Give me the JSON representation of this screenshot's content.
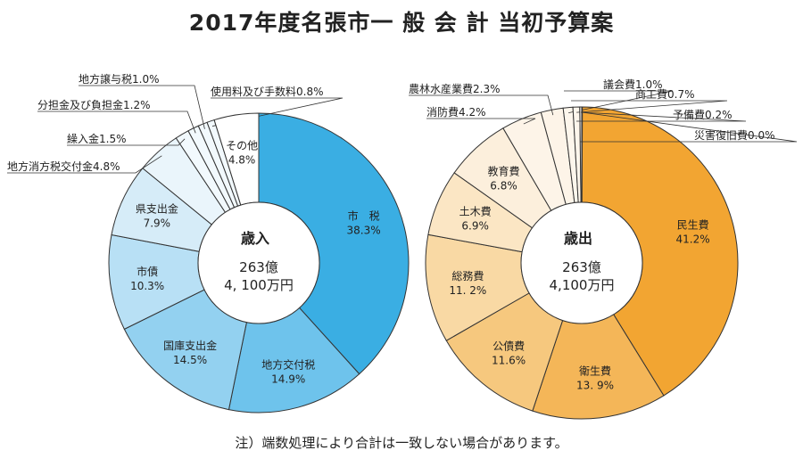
{
  "title": "2017年度名張市一 般 会 計 当初予算案",
  "note": "注）端数処理により合計は一致しない場合があります。",
  "chart_data": [
    {
      "type": "pie",
      "name": "歳入",
      "center": {
        "title": "歳入",
        "amount_line1": "263億",
        "amount_line2": "4, 100万円"
      },
      "slices": [
        {
          "label": "市　税",
          "value": 38.3,
          "pct": "38.3%",
          "color": "#3aaee3",
          "inside": true
        },
        {
          "label": "地方交付税",
          "value": 14.9,
          "pct": "14.9%",
          "color": "#6ec3ec",
          "inside": true
        },
        {
          "label": "国庫支出金",
          "value": 14.5,
          "pct": "14.5%",
          "color": "#93d1f0",
          "inside": true
        },
        {
          "label": "市債",
          "value": 10.3,
          "pct": "10.3%",
          "color": "#b8e0f5",
          "inside": true
        },
        {
          "label": "県支出金",
          "value": 7.9,
          "pct": "7.9%",
          "color": "#d6ecf8",
          "inside": true
        },
        {
          "label": "地方消方税交付金",
          "value": 4.8,
          "pct": "4.8%",
          "color": "#eaf5fb",
          "inside": false,
          "annotation": "地方消方税交付金4.8%"
        },
        {
          "label": "繰入金",
          "value": 1.5,
          "pct": "1.5%",
          "color": "#f2f9fd",
          "inside": false,
          "annotation": "繰入金1.5%"
        },
        {
          "label": "分担金及び負担金",
          "value": 1.2,
          "pct": "1.2%",
          "color": "#f2f9fd",
          "inside": false,
          "annotation": "分担金及び負担金1.2%"
        },
        {
          "label": "地方譲与税",
          "value": 1.0,
          "pct": "1.0%",
          "color": "#f2f9fd",
          "inside": false,
          "annotation": "地方譲与税1.0%"
        },
        {
          "label": "使用料及び手数料",
          "value": 0.8,
          "pct": "0.8%",
          "color": "#f2f9fd",
          "inside": false,
          "annotation": "使用料及び手数料0.8%"
        },
        {
          "label": "その他",
          "value": 4.8,
          "pct": "4.8%",
          "color": "#ffffff",
          "inside": true
        }
      ]
    },
    {
      "type": "pie",
      "name": "歳出",
      "center": {
        "title": "歳出",
        "amount_line1": "263億",
        "amount_line2": "4,100万円"
      },
      "slices": [
        {
          "label": "民生費",
          "value": 41.2,
          "pct": "41.2%",
          "color": "#f2a532",
          "inside": true
        },
        {
          "label": "衛生費",
          "value": 13.9,
          "pct": "13. 9%",
          "color": "#f4b658",
          "inside": true
        },
        {
          "label": "公債費",
          "value": 11.6,
          "pct": "11.6%",
          "color": "#f6c87e",
          "inside": true
        },
        {
          "label": "総務費",
          "value": 11.2,
          "pct": "11. 2%",
          "color": "#f9d9a4",
          "inside": true
        },
        {
          "label": "土木費",
          "value": 6.9,
          "pct": "6.9%",
          "color": "#fbe6c4",
          "inside": true
        },
        {
          "label": "教育費",
          "value": 6.8,
          "pct": "6.8%",
          "color": "#fcefdc",
          "inside": true
        },
        {
          "label": "消防費",
          "value": 4.2,
          "pct": "4.2%",
          "color": "#fdf4e8",
          "inside": false,
          "annotation": "消防費4.2%"
        },
        {
          "label": "農林水産業費",
          "value": 2.3,
          "pct": "2.3%",
          "color": "#fdf4e8",
          "inside": false,
          "annotation": "農林水産業費2.3%"
        },
        {
          "label": "議会費",
          "value": 1.0,
          "pct": "1.0%",
          "color": "#fdf6ec",
          "inside": false,
          "annotation": "議会費1.0%"
        },
        {
          "label": "商工費",
          "value": 0.7,
          "pct": "0.7%",
          "color": "#fdf6ec",
          "inside": false,
          "annotation": "商工費0.7%"
        },
        {
          "label": "予備費",
          "value": 0.2,
          "pct": "0.2%",
          "color": "#fdf6ec",
          "inside": false,
          "annotation": "予備費0.2%"
        },
        {
          "label": "災害復旧費",
          "value": 0.0,
          "pct": "0.0%",
          "color": "#fdf6ec",
          "inside": false,
          "annotation": "災害復旧費0.0%"
        }
      ]
    }
  ]
}
